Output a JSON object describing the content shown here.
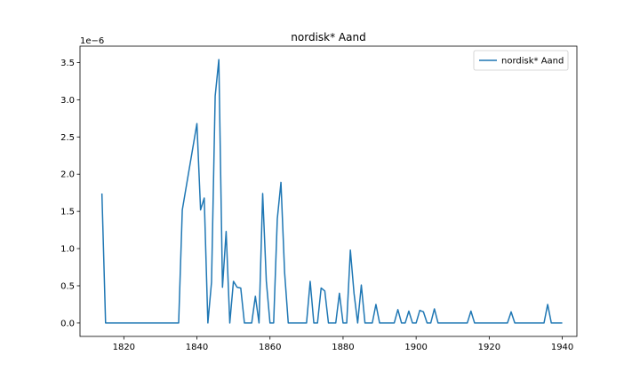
{
  "chart_data": {
    "type": "line",
    "title": "nordisk* Aand",
    "xlabel": "",
    "ylabel": "",
    "y_scale_label": "1e−6",
    "y_multiplier": 1e-06,
    "xlim": [
      1808,
      1944
    ],
    "ylim": [
      -0.18,
      3.72
    ],
    "x_ticks": [
      1820,
      1840,
      1860,
      1880,
      1900,
      1920,
      1940
    ],
    "y_ticks": [
      0.0,
      0.5,
      1.0,
      1.5,
      2.0,
      2.5,
      3.0,
      3.5
    ],
    "grid": false,
    "legend_position": "upper right",
    "series": [
      {
        "name": "nordisk* Aand",
        "color": "#1f77b4",
        "x": [
          1814,
          1815,
          1835,
          1836,
          1840,
          1841,
          1842,
          1843,
          1844,
          1845,
          1846,
          1847,
          1848,
          1849,
          1850,
          1851,
          1852,
          1853,
          1855,
          1856,
          1857,
          1858,
          1859,
          1860,
          1861,
          1862,
          1863,
          1864,
          1865,
          1870,
          1871,
          1872,
          1873,
          1874,
          1875,
          1876,
          1878,
          1879,
          1880,
          1881,
          1882,
          1883,
          1884,
          1885,
          1886,
          1888,
          1889,
          1890,
          1894,
          1895,
          1896,
          1897,
          1898,
          1899,
          1900,
          1901,
          1902,
          1903,
          1904,
          1905,
          1906,
          1914,
          1915,
          1916,
          1925,
          1926,
          1927,
          1935,
          1936,
          1937,
          1940
        ],
        "values": [
          1.74,
          0.0,
          0.0,
          1.52,
          2.68,
          1.52,
          1.68,
          0.0,
          0.55,
          3.05,
          3.54,
          0.48,
          1.23,
          0.0,
          0.56,
          0.48,
          0.47,
          0.0,
          0.0,
          0.36,
          0.0,
          1.74,
          0.56,
          0.0,
          0.0,
          1.4,
          1.89,
          0.68,
          0.0,
          0.0,
          0.56,
          0.0,
          0.0,
          0.47,
          0.43,
          0.0,
          0.0,
          0.4,
          0.0,
          0.0,
          0.98,
          0.4,
          0.0,
          0.51,
          0.0,
          0.0,
          0.25,
          0.0,
          0.0,
          0.18,
          0.0,
          0.0,
          0.16,
          0.0,
          0.0,
          0.17,
          0.15,
          0.0,
          0.0,
          0.19,
          0.0,
          0.0,
          0.16,
          0.0,
          0.0,
          0.15,
          0.0,
          0.0,
          0.25,
          0.0,
          0.0
        ]
      }
    ]
  }
}
